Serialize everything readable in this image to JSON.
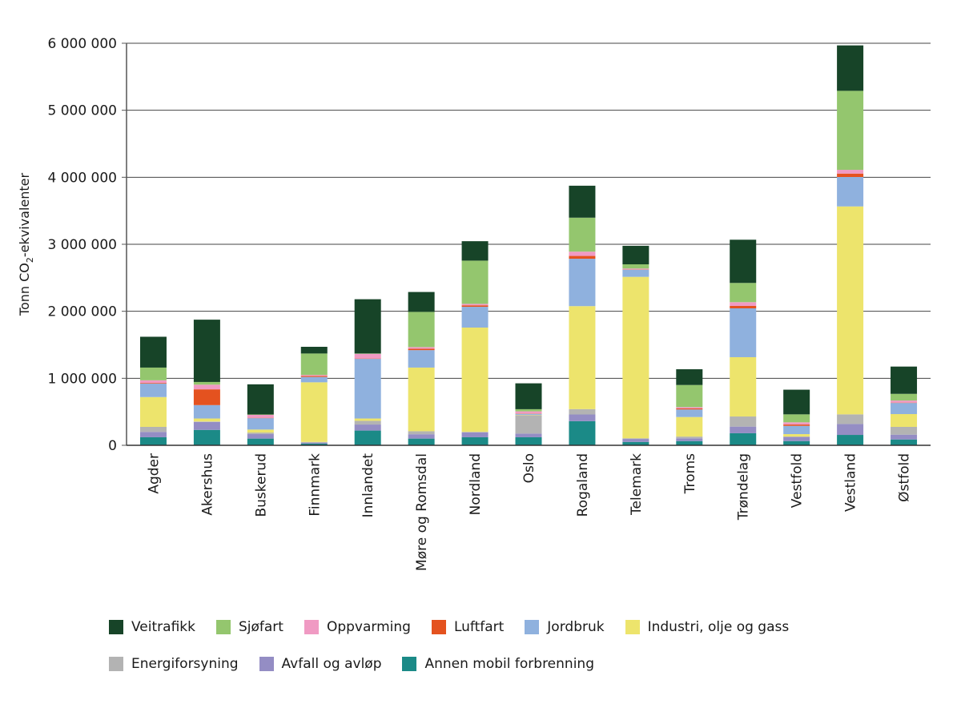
{
  "chart_data": {
    "type": "bar",
    "stacked": true,
    "title": "",
    "xlabel": "",
    "ylabel": "Tonn CO2-ekvivalenter",
    "ylabel_parts": {
      "before": "Tonn CO",
      "sub": "2",
      "after": "-ekvivalenter"
    },
    "ylim": [
      0,
      6000000
    ],
    "yticks": [
      0,
      1000000,
      2000000,
      3000000,
      4000000,
      5000000,
      6000000
    ],
    "ytick_labels": [
      "0",
      "1 000 000",
      "2 000 000",
      "3 000 000",
      "4 000 000",
      "5 000 000",
      "6 000 000"
    ],
    "grid": true,
    "legend_position": "bottom",
    "categories": [
      "Agder",
      "Akershus",
      "Buskerud",
      "Finnmark",
      "Innlandet",
      "Møre og Romsdal",
      "Nordland",
      "Oslo",
      "Rogaland",
      "Telemark",
      "Troms",
      "Trøndelag",
      "Vestfold",
      "Vestland",
      "Østfold"
    ],
    "series": [
      {
        "name": "Annen mobil forbrenning",
        "color": "#1b8a87",
        "values": [
          120000,
          230000,
          100000,
          25000,
          220000,
          100000,
          120000,
          120000,
          360000,
          50000,
          63000,
          180000,
          63000,
          155000,
          87000
        ]
      },
      {
        "name": "Avfall og avløp",
        "color": "#948dc4",
        "values": [
          80000,
          120000,
          67000,
          15000,
          90000,
          65000,
          75000,
          55000,
          100000,
          45000,
          41000,
          99000,
          62000,
          163000,
          72000
        ]
      },
      {
        "name": "Energiforsyning",
        "color": "#b3b3b3",
        "values": [
          75000,
          5000,
          23000,
          10000,
          55000,
          45000,
          5000,
          275000,
          80000,
          10000,
          26000,
          151000,
          5000,
          144000,
          116000
        ]
      },
      {
        "name": "Industri, olje og gass",
        "color": "#ede46c",
        "values": [
          445000,
          45000,
          45000,
          890000,
          35000,
          950000,
          1557000,
          5000,
          1537000,
          2409000,
          292000,
          885000,
          37000,
          3103000,
          191000
        ]
      },
      {
        "name": "Jordbruk",
        "color": "#8fb1de",
        "values": [
          200000,
          200000,
          170000,
          80000,
          890000,
          260000,
          310000,
          15000,
          707000,
          107000,
          113000,
          729000,
          123000,
          439000,
          166000
        ]
      },
      {
        "name": "Luftfart",
        "color": "#e4521f",
        "values": [
          10000,
          235000,
          5000,
          15000,
          5000,
          20000,
          22000,
          5000,
          42000,
          5000,
          15000,
          36000,
          20000,
          51000,
          5000
        ]
      },
      {
        "name": "Oppvarming",
        "color": "#f09ac3",
        "values": [
          40000,
          70000,
          45000,
          15000,
          70000,
          26000,
          22000,
          32000,
          64000,
          12000,
          20000,
          56000,
          33000,
          56000,
          31000
        ]
      },
      {
        "name": "Sjøfart",
        "color": "#94c66e",
        "values": [
          190000,
          40000,
          5000,
          320000,
          5000,
          525000,
          645000,
          32000,
          507000,
          63000,
          330000,
          287000,
          119000,
          1179000,
          100000
        ]
      },
      {
        "name": "Veitrafikk",
        "color": "#174428",
        "values": [
          460000,
          930000,
          450000,
          100000,
          810000,
          297000,
          290000,
          386000,
          477000,
          276000,
          235000,
          645000,
          368000,
          678000,
          407000
        ]
      }
    ],
    "legend_rows": [
      [
        "Veitrafikk",
        "Sjøfart",
        "Oppvarming",
        "Luftfart",
        "Jordbruk",
        "Industri, olje og gass"
      ],
      [
        "Energiforsyning",
        "Avfall og avløp",
        "Annen mobil forbrenning"
      ]
    ]
  }
}
